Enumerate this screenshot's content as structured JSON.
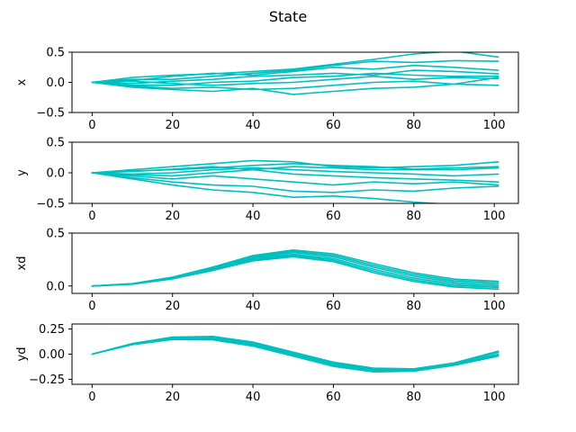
{
  "figure": {
    "title": "State"
  },
  "style": {
    "line_color": "#00bfbf"
  },
  "chart_data": [
    {
      "type": "line",
      "ylabel": "x",
      "xlim": [
        -5,
        106
      ],
      "ylim": [
        -0.5,
        0.5
      ],
      "xticks": [
        "0",
        "20",
        "40",
        "60",
        "80",
        "100"
      ],
      "yticks": [
        "0.5",
        "0.0",
        "−0.5"
      ],
      "series": [
        {
          "x": [
            0,
            10,
            20,
            30,
            40,
            50,
            60,
            70,
            80,
            90,
            101
          ],
          "y": [
            0,
            0.08,
            0.12,
            0.14,
            0.18,
            0.22,
            0.3,
            0.38,
            0.47,
            0.52,
            0.42
          ]
        },
        {
          "x": [
            0,
            10,
            20,
            30,
            40,
            50,
            60,
            70,
            80,
            90,
            101
          ],
          "y": [
            0,
            0.05,
            0.05,
            0.1,
            0.15,
            0.2,
            0.28,
            0.35,
            0.33,
            0.36,
            0.35
          ]
        },
        {
          "x": [
            0,
            10,
            20,
            30,
            40,
            50,
            60,
            70,
            80,
            90,
            101
          ],
          "y": [
            0,
            0.03,
            0.1,
            0.15,
            0.12,
            0.18,
            0.25,
            0.22,
            0.28,
            0.25,
            0.2
          ]
        },
        {
          "x": [
            0,
            10,
            20,
            30,
            40,
            50,
            60,
            70,
            80,
            90,
            101
          ],
          "y": [
            0,
            -0.02,
            0.02,
            0.05,
            0.1,
            0.12,
            0.15,
            0.12,
            0.2,
            0.18,
            0.14
          ]
        },
        {
          "x": [
            0,
            10,
            20,
            30,
            40,
            50,
            60,
            70,
            80,
            90,
            101
          ],
          "y": [
            0,
            -0.05,
            -0.05,
            0.0,
            0.02,
            0.08,
            0.1,
            0.15,
            0.12,
            0.1,
            0.1
          ]
        },
        {
          "x": [
            0,
            10,
            20,
            30,
            40,
            50,
            60,
            70,
            80,
            90,
            101
          ],
          "y": [
            0,
            0.02,
            -0.02,
            -0.05,
            -0.02,
            0.0,
            0.05,
            0.1,
            0.05,
            0.08,
            0.06
          ]
        },
        {
          "x": [
            0,
            10,
            20,
            30,
            40,
            50,
            60,
            70,
            80,
            90,
            101
          ],
          "y": [
            0,
            -0.06,
            -0.1,
            -0.08,
            -0.12,
            -0.1,
            -0.05,
            0.0,
            0.02,
            -0.03,
            -0.05
          ]
        },
        {
          "x": [
            0,
            10,
            20,
            30,
            40,
            50,
            60,
            70,
            80,
            90,
            101
          ],
          "y": [
            0,
            -0.08,
            -0.12,
            -0.15,
            -0.1,
            -0.2,
            -0.15,
            -0.1,
            -0.08,
            -0.03,
            0.08
          ]
        }
      ]
    },
    {
      "type": "line",
      "ylabel": "y",
      "xlim": [
        -5,
        106
      ],
      "ylim": [
        -0.5,
        0.5
      ],
      "xticks": [
        "0",
        "20",
        "40",
        "60",
        "80",
        "100"
      ],
      "yticks": [
        "0.5",
        "0.0",
        "−0.5"
      ],
      "series": [
        {
          "x": [
            0,
            10,
            20,
            30,
            40,
            50,
            60,
            70,
            80,
            90,
            101
          ],
          "y": [
            0,
            0.05,
            0.1,
            0.15,
            0.2,
            0.18,
            0.1,
            0.08,
            0.1,
            0.12,
            0.18
          ]
        },
        {
          "x": [
            0,
            10,
            20,
            30,
            40,
            50,
            60,
            70,
            80,
            90,
            101
          ],
          "y": [
            0,
            0.03,
            0.05,
            0.08,
            0.12,
            0.15,
            0.12,
            0.1,
            0.06,
            0.08,
            0.1
          ]
        },
        {
          "x": [
            0,
            10,
            20,
            30,
            40,
            50,
            60,
            70,
            80,
            90,
            101
          ],
          "y": [
            0,
            0.02,
            0.06,
            0.1,
            0.05,
            0.1,
            0.08,
            0.05,
            0.05,
            0.05,
            0.08
          ]
        },
        {
          "x": [
            0,
            10,
            20,
            30,
            40,
            50,
            60,
            70,
            80,
            90,
            101
          ],
          "y": [
            0,
            -0.02,
            0.0,
            0.05,
            0.08,
            0.05,
            0.02,
            0.0,
            -0.02,
            -0.05,
            -0.02
          ]
        },
        {
          "x": [
            0,
            10,
            20,
            30,
            40,
            50,
            60,
            70,
            80,
            90,
            101
          ],
          "y": [
            0,
            -0.03,
            -0.05,
            0.0,
            0.05,
            -0.02,
            -0.05,
            -0.08,
            -0.1,
            -0.12,
            -0.15
          ]
        },
        {
          "x": [
            0,
            10,
            20,
            30,
            40,
            50,
            60,
            70,
            80,
            90,
            101
          ],
          "y": [
            0,
            -0.05,
            -0.1,
            -0.05,
            -0.1,
            -0.15,
            -0.2,
            -0.15,
            -0.18,
            -0.15,
            -0.2
          ]
        },
        {
          "x": [
            0,
            10,
            20,
            30,
            40,
            50,
            60,
            70,
            80,
            90,
            101
          ],
          "y": [
            0,
            -0.08,
            -0.15,
            -0.2,
            -0.22,
            -0.3,
            -0.32,
            -0.28,
            -0.3,
            -0.25,
            -0.22
          ]
        },
        {
          "x": [
            0,
            10,
            20,
            30,
            40,
            50,
            60,
            70,
            80,
            90,
            101
          ],
          "y": [
            0,
            -0.1,
            -0.2,
            -0.28,
            -0.32,
            -0.4,
            -0.38,
            -0.42,
            -0.48,
            -0.52,
            -0.55
          ]
        }
      ]
    },
    {
      "type": "line",
      "ylabel": "xd",
      "xlim": [
        -5,
        106
      ],
      "ylim": [
        -0.07,
        0.5
      ],
      "xticks": [
        "0",
        "20",
        "40",
        "60",
        "80",
        "100"
      ],
      "yticks": [
        "0.5",
        "0.0"
      ],
      "series": [
        {
          "x": [
            0,
            10,
            20,
            30,
            40,
            50,
            60,
            70,
            80,
            90,
            101
          ],
          "y": [
            0.0,
            0.019,
            0.074,
            0.159,
            0.258,
            0.3,
            0.258,
            0.159,
            0.074,
            0.019,
            0.0
          ]
        },
        {
          "x": [
            0,
            10,
            20,
            30,
            40,
            50,
            60,
            70,
            80,
            90,
            101
          ],
          "y": [
            0.0,
            0.02,
            0.078,
            0.166,
            0.268,
            0.315,
            0.275,
            0.178,
            0.092,
            0.035,
            0.015
          ]
        },
        {
          "x": [
            0,
            10,
            20,
            30,
            40,
            50,
            60,
            70,
            80,
            90,
            101
          ],
          "y": [
            0.0,
            0.021,
            0.081,
            0.172,
            0.278,
            0.328,
            0.29,
            0.195,
            0.108,
            0.05,
            0.03
          ]
        },
        {
          "x": [
            0,
            10,
            20,
            30,
            40,
            50,
            60,
            70,
            80,
            90,
            101
          ],
          "y": [
            0.0,
            0.022,
            0.084,
            0.178,
            0.288,
            0.34,
            0.304,
            0.212,
            0.124,
            0.065,
            0.045
          ]
        },
        {
          "x": [
            0,
            10,
            20,
            30,
            40,
            50,
            60,
            70,
            80,
            90,
            101
          ],
          "y": [
            0.0,
            0.018,
            0.07,
            0.152,
            0.248,
            0.288,
            0.244,
            0.142,
            0.058,
            0.004,
            -0.015
          ]
        },
        {
          "x": [
            0,
            10,
            20,
            30,
            40,
            50,
            60,
            70,
            80,
            90,
            101
          ],
          "y": [
            0.0,
            0.017,
            0.067,
            0.146,
            0.238,
            0.276,
            0.23,
            0.126,
            0.043,
            -0.01,
            -0.03
          ]
        }
      ]
    },
    {
      "type": "line",
      "ylabel": "yd",
      "xlim": [
        -5,
        106
      ],
      "ylim": [
        -0.3,
        0.3
      ],
      "xticks": [
        "0",
        "20",
        "40",
        "60",
        "80",
        "100"
      ],
      "yticks": [
        "0.25",
        "0.00",
        "−0.25"
      ],
      "series": [
        {
          "x": [
            0,
            10,
            20,
            30,
            40,
            50,
            60,
            70,
            80,
            90,
            101
          ],
          "y": [
            0.0,
            0.1,
            0.158,
            0.158,
            0.1,
            0.0,
            -0.1,
            -0.158,
            -0.158,
            -0.1,
            0.0
          ]
        },
        {
          "x": [
            0,
            10,
            20,
            30,
            40,
            50,
            60,
            70,
            80,
            90,
            101
          ],
          "y": [
            0.0,
            0.103,
            0.165,
            0.168,
            0.112,
            0.012,
            -0.088,
            -0.148,
            -0.152,
            -0.095,
            0.018
          ]
        },
        {
          "x": [
            0,
            10,
            20,
            30,
            40,
            50,
            60,
            70,
            80,
            90,
            101
          ],
          "y": [
            0.0,
            0.106,
            0.17,
            0.176,
            0.12,
            0.02,
            -0.08,
            -0.14,
            -0.146,
            -0.088,
            0.03
          ]
        },
        {
          "x": [
            0,
            10,
            20,
            30,
            40,
            50,
            60,
            70,
            80,
            90,
            101
          ],
          "y": [
            0.0,
            0.097,
            0.152,
            0.15,
            0.09,
            -0.01,
            -0.112,
            -0.168,
            -0.165,
            -0.106,
            -0.01
          ]
        },
        {
          "x": [
            0,
            10,
            20,
            30,
            40,
            50,
            60,
            70,
            80,
            90,
            101
          ],
          "y": [
            0.0,
            0.094,
            0.146,
            0.142,
            0.08,
            -0.02,
            -0.122,
            -0.176,
            -0.17,
            -0.112,
            -0.02
          ]
        }
      ]
    }
  ]
}
